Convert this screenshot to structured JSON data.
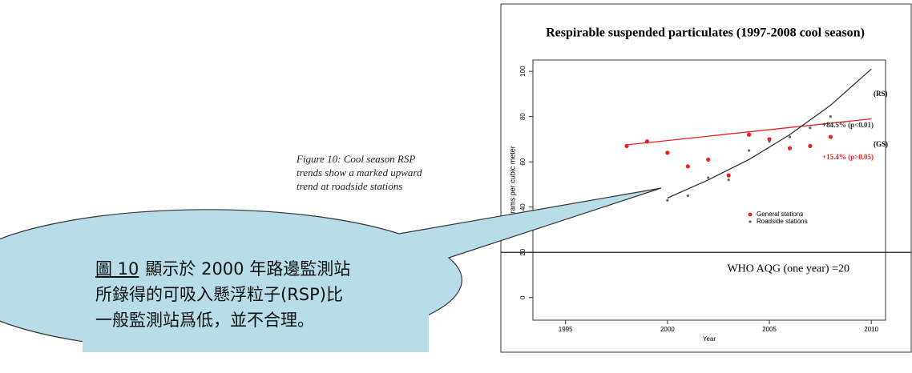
{
  "chart_data": {
    "type": "scatter",
    "title": "Respirable suspended particulates (1997-2008 cool season)",
    "x_label": "Year",
    "y_label": "Micrograms per cubic meter",
    "xlim": [
      1993.4,
      2010.7
    ],
    "ylim": [
      -10,
      105
    ],
    "xticks": [
      1995,
      2000,
      2005,
      2010
    ],
    "yticks": [
      0,
      20,
      40,
      60,
      80,
      100
    ],
    "series": [
      {
        "name": "General stations",
        "color": "#e8231f",
        "x": [
          1998,
          1999,
          2000,
          2001,
          2002,
          2003,
          2004,
          2005,
          2006,
          2007,
          2008
        ],
        "values": [
          67,
          69,
          64,
          58,
          61,
          54,
          72,
          70,
          66,
          67,
          71
        ]
      },
      {
        "name": "Roadside stations",
        "color": "#666666",
        "x": [
          2000,
          2001,
          2002,
          2003,
          2004,
          2005,
          2006,
          2007,
          2008
        ],
        "values": [
          43,
          45,
          53,
          52,
          65,
          69,
          71,
          75,
          80
        ]
      }
    ],
    "trends": [
      {
        "name": "(GS)",
        "color": "#e8231f",
        "x": [
          1998,
          2010
        ],
        "values": [
          67.5,
          79
        ],
        "annotation": "+15.4% (p>0.05)"
      },
      {
        "name": "(RS)",
        "color": "#333333",
        "x": [
          2000,
          2002,
          2004,
          2006,
          2008,
          2010
        ],
        "values": [
          44,
          52,
          61,
          72,
          85,
          101
        ],
        "annotation": "+84.5% (p<0.01)"
      }
    ],
    "hline": {
      "value": 20,
      "label": "WHO AQG (one year) =20"
    }
  },
  "figure_caption": [
    "Figure 10: Cool season RSP",
    "trends show a marked upward",
    "trend at roadside stations"
  ],
  "callout": {
    "figure_ref": "圖 10",
    "lines": [
      "顯示於 2000 年路邊監測站",
      "所錄得的可吸入懸浮粒子(RSP)比",
      "一般監測站爲低，並不合理。"
    ]
  }
}
